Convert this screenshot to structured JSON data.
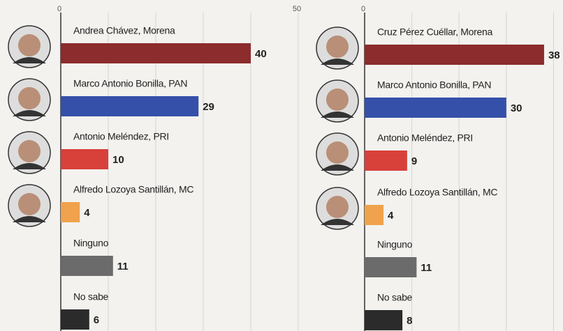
{
  "chart_data": [
    {
      "type": "bar",
      "orientation": "horizontal",
      "categories": [
        "Andrea Chávez, Morena",
        "Marco Antonio Bonilla, PAN",
        "Antonio Meléndez, PRI",
        "Alfredo Lozoya Santillán, MC",
        "Ninguno",
        "No sabe"
      ],
      "values": [
        40,
        29,
        10,
        4,
        11,
        6
      ],
      "colors": [
        "#8c2c2c",
        "#3550a8",
        "#d8403a",
        "#f0a24c",
        "#6b6b6b",
        "#2b2b2b"
      ],
      "xlim": [
        0,
        50
      ],
      "xticks": [
        0,
        50
      ],
      "minor_xticks": [
        10,
        20,
        30,
        40
      ],
      "grid": true
    },
    {
      "type": "bar",
      "orientation": "horizontal",
      "categories": [
        "Cruz Pérez Cuéllar, Morena",
        "Marco Antonio Bonilla, PAN",
        "Antonio Meléndez, PRI",
        "Alfredo Lozoya Santillán, MC",
        "Ninguno",
        "No sabe"
      ],
      "values": [
        38,
        30,
        9,
        4,
        11,
        8
      ],
      "colors": [
        "#8c2c2c",
        "#3550a8",
        "#d8403a",
        "#f0a24c",
        "#6b6b6b",
        "#2b2b2b"
      ],
      "xlim": [
        0,
        42
      ],
      "xticks": [
        0
      ],
      "minor_xticks": [
        10,
        20,
        30,
        40
      ],
      "grid": true
    }
  ]
}
